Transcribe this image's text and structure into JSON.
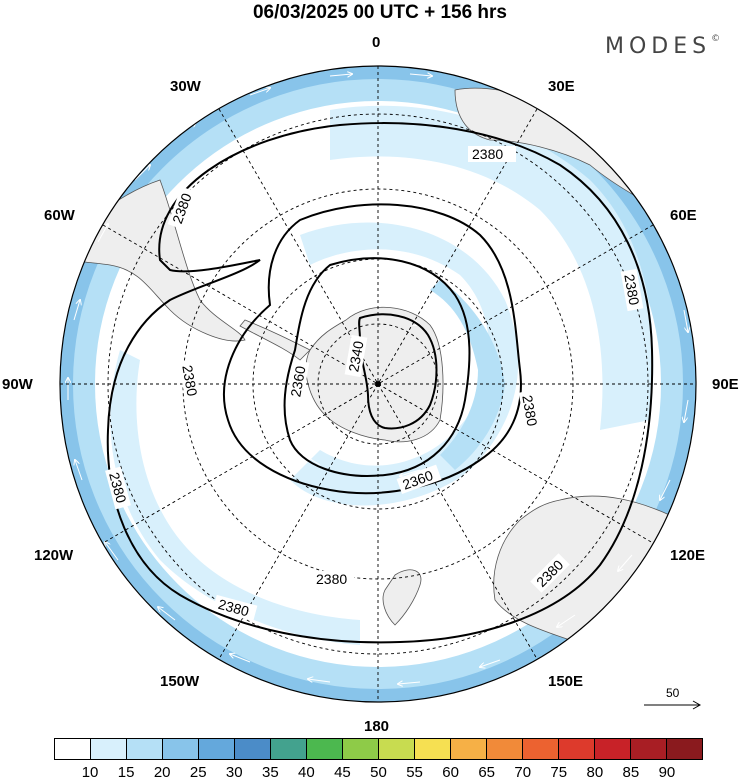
{
  "title": "06/03/2025  00 UTC  + 156 hrs",
  "brand": "MODES",
  "brand_mark": "©",
  "longitude_labels": {
    "n0": "0",
    "n30e": "30E",
    "n60e": "60E",
    "n90e": "90E",
    "n120e": "120E",
    "n150e": "150E",
    "n180": "180",
    "n150w": "150W",
    "n120w": "120W",
    "n90w": "90W",
    "n60w": "60W",
    "n30w": "30W"
  },
  "contour_labels": [
    "2380",
    "2380",
    "2380",
    "2380",
    "2380",
    "2380",
    "2380",
    "2380",
    "2360",
    "2360",
    "2340"
  ],
  "reference_vector": "50",
  "colorbar": {
    "labels": [
      "10",
      "15",
      "20",
      "25",
      "30",
      "35",
      "40",
      "45",
      "50",
      "55",
      "60",
      "65",
      "70",
      "75",
      "80",
      "85",
      "90"
    ],
    "colors": [
      "#ffffff",
      "#d8f0fc",
      "#b5e0f6",
      "#88c4ea",
      "#64a8dc",
      "#4b8cc8",
      "#43a28e",
      "#4cb84f",
      "#8ecb48",
      "#c8dc50",
      "#f6e052",
      "#f6b046",
      "#f18a39",
      "#ec6230",
      "#dd3a2c",
      "#c82228",
      "#a81e24",
      "#8a1a1e"
    ]
  }
}
